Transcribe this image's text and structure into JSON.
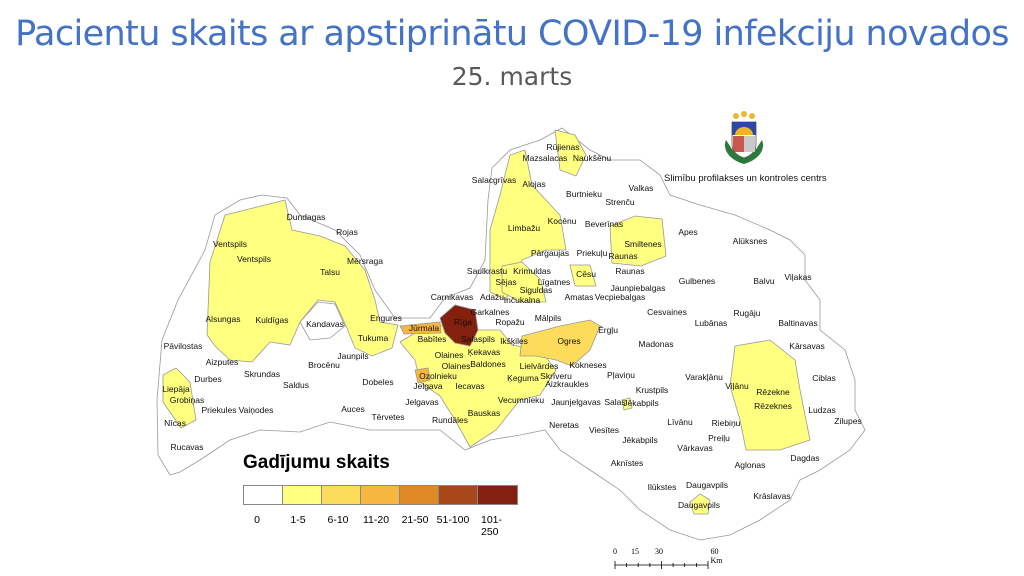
{
  "title": "Pacientu skaits ar apstiprinātu COVID-19 infekciju novados",
  "subtitle": "25. marts",
  "logo": {
    "text": "Slimību profilakses un kontroles centrs",
    "icon": "latvia-coat-of-arms-icon"
  },
  "legend": {
    "title": "Gadījumu skaits",
    "classes": [
      {
        "label": "0",
        "color": "#ffffff"
      },
      {
        "label": "1-5",
        "color": "#ffff80"
      },
      {
        "label": "6-10",
        "color": "#fddc5c"
      },
      {
        "label": "11-20",
        "color": "#f7b640"
      },
      {
        "label": "21-50",
        "color": "#df8a27"
      },
      {
        "label": "51-100",
        "color": "#a8471a"
      },
      {
        "label": "101-250",
        "color": "#84200e"
      }
    ]
  },
  "scale_bar": {
    "ticks": [
      "0",
      "15",
      "30",
      "60 Km"
    ]
  },
  "map": {
    "border_color": "#999999",
    "labels": [
      "Rūjienas",
      "Mazsalacas",
      "Naukšēnu",
      "Salacgrīvas",
      "Alojas",
      "Burtnieku",
      "Valkas",
      "Strenču",
      "Limbažu",
      "Kocēnu",
      "Beverīnas",
      "Smiltenes",
      "Raunas",
      "Apes",
      "Alūksnes",
      "Pārgaujas",
      "Priekuļu",
      "Saulkrastu",
      "Krimuldas",
      "Sējas",
      "Cēsu",
      "Raunas",
      "Līgatnes",
      "Jaunpiebalgas",
      "Gulbenes",
      "Balvu",
      "Viļakas",
      "Carnikavas",
      "Adažu",
      "Siguldas",
      "Inčukalna",
      "Amatas",
      "Vecpiebalgas",
      "Garkalnes",
      "Mālpils",
      "Ropažu",
      "Ērgļu",
      "Cesvaines",
      "Rugāju",
      "Lubānas",
      "Baltinavas",
      "Jūrmala",
      "Rīga",
      "Babītes",
      "Salaspils",
      "Ikšķiles",
      "Ogres",
      "Madonas",
      "Kārsavas",
      "Olaines",
      "Ķekavas",
      "Lielvārdes",
      "Kokneses",
      "Olaines",
      "Baldones",
      "Pļaviņu",
      "Ozolnieku",
      "Ķeguma",
      "Skrīveru",
      "Aizkraukles",
      "Jelgava",
      "Iecavas",
      "Vecumnieku",
      "Jaunjelgavas",
      "Salas",
      "Jēkabpils",
      "Krustpils",
      "Varakļānu",
      "Viļānu",
      "Rēzekne",
      "Rēzeknes",
      "Ciblas",
      "Ludzas",
      "Zilupes",
      "Jelgavas",
      "Rundāles",
      "Bauskas",
      "Neretas",
      "Viesītes",
      "Līvānu",
      "Riebiņu",
      "Jēkabpils",
      "Preiļu",
      "Vārkavas",
      "Aglonas",
      "Dagdas",
      "Aknīstes",
      "Ilūkstes",
      "Daugavpils",
      "Krāslavas",
      "Daugavpils",
      "Dundagas",
      "Rojas",
      "Ventspils",
      "Ventspils",
      "Mērsraga",
      "Talsu",
      "Alsungas",
      "Kuldīgas",
      "Kandavas",
      "Engures",
      "Tukuma",
      "Pāvilostas",
      "Jaunpils",
      "Aizputes",
      "Brocēnu",
      "Durbes",
      "Skrundas",
      "Liepāja",
      "Saldus",
      "Dobeles",
      "Grobiņas",
      "Priekules",
      "Vaiņodes",
      "Auces",
      "Tērvetes",
      "Nīcas",
      "Rucavas"
    ]
  }
}
